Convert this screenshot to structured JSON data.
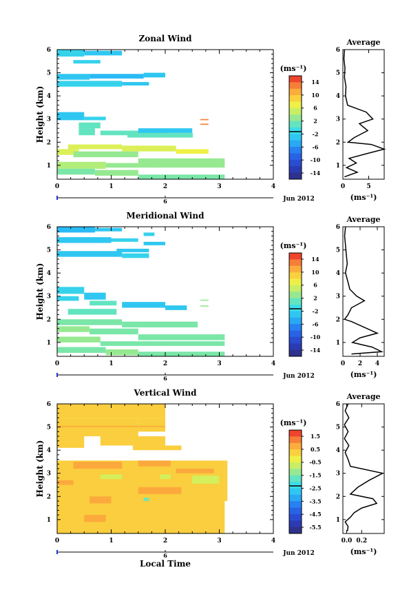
{
  "chart_data": [
    {
      "type": "heatmap",
      "title": "Zonal Wind",
      "ylabel": "Height (km)",
      "xlabel": "",
      "xlim": [
        0,
        4
      ],
      "ylim": [
        0.4,
        6
      ],
      "xticks": [
        "0",
        "1",
        "2",
        "3",
        "4"
      ],
      "yticks": [
        "1",
        "2",
        "3",
        "4",
        "5",
        "6"
      ],
      "date_label": "Jun 2012",
      "date_tick": "6",
      "colorbar": {
        "unit": "(ms⁻¹)",
        "ticks": [
          "14",
          "10",
          "6",
          "2",
          "-2",
          "-6",
          "-10",
          "-14"
        ],
        "range": [
          -16,
          16
        ]
      },
      "cells": [
        [
          0.0,
          0.5,
          5.7,
          6.0,
          -2
        ],
        [
          0.5,
          1.2,
          5.75,
          5.95,
          -3
        ],
        [
          0.3,
          0.8,
          5.4,
          5.55,
          -2
        ],
        [
          0.0,
          0.6,
          4.7,
          4.95,
          -3
        ],
        [
          0.6,
          1.6,
          4.75,
          4.95,
          -4
        ],
        [
          1.6,
          2.0,
          4.8,
          5.0,
          -3
        ],
        [
          0.0,
          1.2,
          4.4,
          4.65,
          -2
        ],
        [
          1.2,
          1.7,
          4.45,
          4.6,
          -3
        ],
        [
          0.0,
          0.5,
          2.95,
          3.3,
          -3
        ],
        [
          0.5,
          0.9,
          2.95,
          3.1,
          -2
        ],
        [
          0.4,
          0.8,
          2.6,
          2.85,
          1
        ],
        [
          0.4,
          0.7,
          2.3,
          2.6,
          1
        ],
        [
          0.8,
          1.3,
          2.3,
          2.5,
          1
        ],
        [
          1.3,
          2.0,
          2.2,
          2.5,
          1
        ],
        [
          2.0,
          2.5,
          2.2,
          2.4,
          1
        ],
        [
          2.5,
          2.5,
          2.2,
          2.4,
          1
        ],
        [
          1.5,
          2.5,
          2.4,
          2.6,
          -3
        ],
        [
          0.2,
          1.2,
          1.7,
          1.9,
          6
        ],
        [
          1.2,
          2.2,
          1.6,
          1.85,
          6
        ],
        [
          2.2,
          2.8,
          1.5,
          1.7,
          7
        ],
        [
          0.0,
          0.4,
          1.45,
          1.7,
          6
        ],
        [
          0.3,
          1.5,
          1.35,
          1.6,
          3
        ],
        [
          1.5,
          3.1,
          1.05,
          1.3,
          3
        ],
        [
          0.0,
          0.9,
          0.85,
          1.15,
          4
        ],
        [
          0.9,
          1.8,
          0.9,
          1.1,
          3
        ],
        [
          1.8,
          3.1,
          0.9,
          1.1,
          3
        ],
        [
          0.0,
          0.7,
          0.6,
          0.85,
          2
        ],
        [
          0.7,
          1.5,
          0.55,
          0.8,
          3
        ],
        [
          1.5,
          3.1,
          0.4,
          0.6,
          2
        ],
        [
          2.65,
          2.8,
          2.95,
          3.0,
          13
        ],
        [
          2.65,
          2.8,
          2.75,
          2.8,
          13
        ]
      ],
      "average": {
        "xlim": [
          0,
          8
        ],
        "xticks": [
          "0",
          "5"
        ],
        "xlabel": "(ms⁻¹)",
        "title": "Average",
        "height": [
          6.0,
          5.6,
          5.2,
          4.8,
          4.4,
          4.0,
          3.6,
          3.3,
          3.0,
          2.8,
          2.5,
          2.2,
          2.0,
          1.9,
          1.7,
          1.5,
          1.3,
          1.1,
          0.9,
          0.7,
          0.5
        ],
        "value": [
          0.3,
          0.2,
          0.4,
          0.3,
          0.6,
          0.5,
          0.9,
          4.5,
          5.8,
          3.2,
          4.8,
          2.2,
          1.0,
          5.5,
          8.0,
          4.5,
          1.2,
          2.6,
          0.7,
          2.8,
          0.3
        ]
      }
    },
    {
      "type": "heatmap",
      "title": "Meridional Wind",
      "ylabel": "Height (km)",
      "xlabel": "",
      "xlim": [
        0,
        4
      ],
      "ylim": [
        0.4,
        6
      ],
      "xticks": [
        "0",
        "1",
        "2",
        "3",
        "4"
      ],
      "yticks": [
        "1",
        "2",
        "3",
        "4",
        "5",
        "6"
      ],
      "date_label": "Jun 2012",
      "date_tick": "6",
      "colorbar": {
        "unit": "(ms⁻¹)",
        "ticks": [
          "14",
          "10",
          "6",
          "2",
          "-2",
          "-6",
          "-10",
          "-14"
        ],
        "range": [
          -16,
          16
        ]
      },
      "cells": [
        [
          0.0,
          0.7,
          5.75,
          6.0,
          -4
        ],
        [
          0.7,
          1.2,
          5.8,
          5.95,
          -3
        ],
        [
          1.6,
          1.8,
          5.6,
          5.75,
          -2
        ],
        [
          0.0,
          1.0,
          5.3,
          5.55,
          -3
        ],
        [
          1.0,
          1.5,
          5.35,
          5.5,
          -2
        ],
        [
          1.6,
          2.0,
          5.2,
          5.35,
          -3
        ],
        [
          0.0,
          1.2,
          4.7,
          4.95,
          -3
        ],
        [
          1.2,
          1.7,
          4.65,
          4.85,
          -2
        ],
        [
          1.1,
          1.7,
          4.9,
          5.05,
          -3
        ],
        [
          0.0,
          0.5,
          3.1,
          3.4,
          -2
        ],
        [
          0.5,
          0.9,
          2.85,
          3.15,
          -3
        ],
        [
          0.0,
          0.4,
          2.8,
          3.0,
          -2
        ],
        [
          0.6,
          1.1,
          2.6,
          2.8,
          1
        ],
        [
          1.2,
          2.0,
          2.5,
          2.75,
          -3
        ],
        [
          2.0,
          2.4,
          2.4,
          2.6,
          -3
        ],
        [
          0.2,
          1.1,
          2.2,
          2.45,
          1
        ],
        [
          2.65,
          2.8,
          2.8,
          2.85,
          3
        ],
        [
          2.65,
          2.8,
          2.55,
          2.6,
          3
        ],
        [
          0.0,
          1.2,
          1.75,
          2.0,
          2
        ],
        [
          1.2,
          2.6,
          1.65,
          1.9,
          2
        ],
        [
          0.0,
          0.6,
          1.45,
          1.7,
          3
        ],
        [
          0.6,
          1.5,
          1.35,
          1.6,
          2
        ],
        [
          1.5,
          3.1,
          1.1,
          1.35,
          2
        ],
        [
          0.0,
          0.8,
          1.0,
          1.25,
          3
        ],
        [
          0.8,
          1.8,
          0.85,
          1.05,
          2
        ],
        [
          1.8,
          3.1,
          0.85,
          1.05,
          2
        ],
        [
          0.0,
          0.9,
          0.55,
          0.8,
          2
        ],
        [
          0.9,
          1.5,
          0.45,
          0.7,
          3
        ],
        [
          1.5,
          3.1,
          0.4,
          0.6,
          2
        ]
      ],
      "average": {
        "xlim": [
          0,
          4.8
        ],
        "xticks": [
          "0",
          "2",
          "4"
        ],
        "xlabel": "(ms⁻¹)",
        "title": "Average",
        "height": [
          6.0,
          5.6,
          5.2,
          4.8,
          4.4,
          4.0,
          3.6,
          3.3,
          3.0,
          2.8,
          2.5,
          2.2,
          2.0,
          1.9,
          1.6,
          1.4,
          1.2,
          1.0,
          0.8,
          0.6,
          0.5
        ],
        "value": [
          0.3,
          0.2,
          0.3,
          0.4,
          0.5,
          0.3,
          0.6,
          0.8,
          1.6,
          2.5,
          1.0,
          0.6,
          0.2,
          1.0,
          2.8,
          4.0,
          2.0,
          1.1,
          3.4,
          4.5,
          1.0
        ]
      }
    },
    {
      "type": "heatmap",
      "title": "Vertical Wind",
      "ylabel": "Height (km)",
      "xlabel": "Local Time",
      "xlim": [
        0,
        4
      ],
      "ylim": [
        0.4,
        6
      ],
      "xticks": [
        "0",
        "1",
        "2",
        "3",
        "4"
      ],
      "yticks": [
        "1",
        "2",
        "3",
        "4",
        "5",
        "6"
      ],
      "date_label": "Jun 2012",
      "date_tick": "6",
      "colorbar": {
        "unit": "(ms⁻¹)",
        "ticks": [
          "1.5",
          "0.5",
          "-0.5",
          "-1.5",
          "-2.5",
          "-3.5",
          "-4.5",
          "-5.5"
        ],
        "range": [
          -6,
          2
        ]
      },
      "cells": [
        [
          0.0,
          2.0,
          5.4,
          6.0,
          0.3
        ],
        [
          0.0,
          1.5,
          4.6,
          5.4,
          0.3
        ],
        [
          1.5,
          2.0,
          4.8,
          5.4,
          0.3
        ],
        [
          0.0,
          0.5,
          4.1,
          4.6,
          0.3
        ],
        [
          0.8,
          2.0,
          4.2,
          4.6,
          0.3
        ],
        [
          1.4,
          2.3,
          4.0,
          4.2,
          0.3
        ],
        [
          0.0,
          3.1,
          0.4,
          3.55,
          0.3
        ],
        [
          3.1,
          3.15,
          1.8,
          3.55,
          0.3
        ],
        [
          0.3,
          1.2,
          3.2,
          3.5,
          0.8
        ],
        [
          1.5,
          2.1,
          3.3,
          3.55,
          0.8
        ],
        [
          0.6,
          1.0,
          1.7,
          2.0,
          0.8
        ],
        [
          1.5,
          2.3,
          2.1,
          2.4,
          0.8
        ],
        [
          0.5,
          0.9,
          0.9,
          1.2,
          0.8
        ],
        [
          0.0,
          0.3,
          2.5,
          2.7,
          0.8
        ],
        [
          0.8,
          1.2,
          2.75,
          2.95,
          -0.6
        ],
        [
          1.9,
          2.1,
          2.75,
          2.95,
          -0.6
        ],
        [
          2.5,
          3.0,
          2.55,
          2.9,
          -0.6
        ],
        [
          1.6,
          1.7,
          1.8,
          1.95,
          -1.6
        ],
        [
          0.0,
          2.0,
          5.0,
          5.05,
          0.8
        ],
        [
          2.2,
          2.9,
          3.0,
          3.2,
          0.8
        ]
      ],
      "average": {
        "xlim": [
          -0.05,
          0.5
        ],
        "xticks": [
          "0.0",
          "0.2"
        ],
        "xlabel": "(ms⁻¹)",
        "title": "Average",
        "height": [
          6.0,
          5.7,
          5.4,
          5.1,
          4.8,
          4.5,
          4.2,
          3.9,
          3.6,
          3.3,
          3.0,
          2.7,
          2.4,
          2.1,
          1.9,
          1.7,
          1.5,
          1.3,
          1.1,
          0.9,
          0.7,
          0.5
        ],
        "value": [
          0.02,
          -0.02,
          0.03,
          -0.03,
          0.02,
          -0.03,
          0.03,
          -0.02,
          0.02,
          0.05,
          0.48,
          0.3,
          0.15,
          0.05,
          0.35,
          0.4,
          0.2,
          0.1,
          0.05,
          -0.02,
          0.02,
          0.01
        ]
      }
    }
  ]
}
